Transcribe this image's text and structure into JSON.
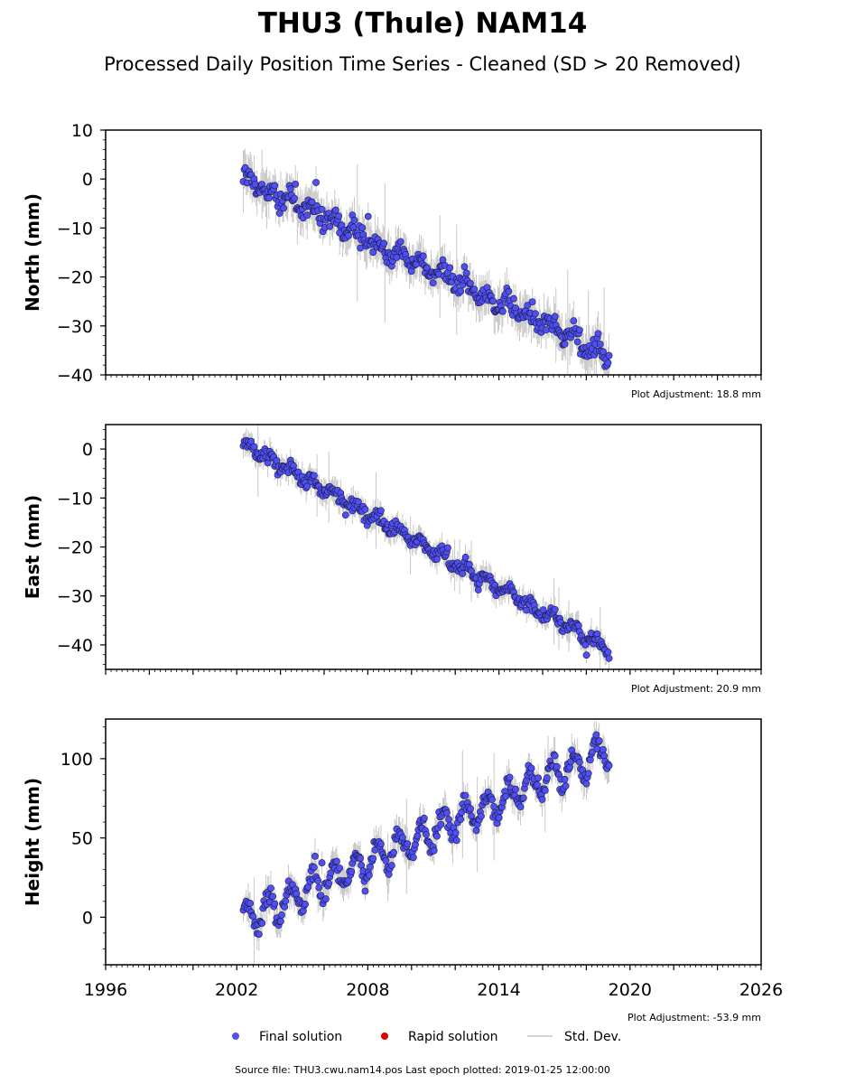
{
  "chart_data": {
    "type": "scatter",
    "title": "THU3 (Thule) NAM14",
    "subtitle": "Processed Daily Position Time Series - Cleaned (SD > 20 Removed)",
    "xlim": [
      1996,
      2026
    ],
    "xticks": [
      1996,
      2002,
      2008,
      2014,
      2020,
      2026
    ],
    "first_epoch": 2002.3,
    "last_epoch": 2019.07,
    "colors": {
      "final": "#4f4ff5",
      "rapid": "#e00000",
      "stddev": "#c8c8c8",
      "marker_edge": "#1a1a40"
    },
    "panels": [
      {
        "ylabel": "North (mm)",
        "ylim": [
          -40,
          10
        ],
        "yticks": [
          10,
          0,
          -10,
          -20,
          -30,
          -40
        ],
        "ytick_labels": [
          "10",
          "0",
          "−10",
          "−20",
          "−30",
          "−40"
        ],
        "adjustment": "Plot Adjustment: 18.8 mm",
        "trend": {
          "start": [
            2002.3,
            0
          ],
          "end": [
            2019.07,
            -36
          ]
        },
        "seasonal_amplitude": 1.2,
        "noise": 1.6
      },
      {
        "ylabel": "East (mm)",
        "ylim": [
          -45,
          5
        ],
        "yticks": [
          0,
          -10,
          -20,
          -30,
          -40
        ],
        "ytick_labels": [
          "0",
          "−10",
          "−20",
          "−30",
          "−40"
        ],
        "adjustment": "Plot Adjustment: 20.9 mm",
        "trend": {
          "start": [
            2002.3,
            1
          ],
          "end": [
            2019.07,
            -41
          ]
        },
        "seasonal_amplitude": 1.0,
        "noise": 1.0
      },
      {
        "ylabel": "Height (mm)",
        "ylim": [
          -30,
          125
        ],
        "yticks": [
          100,
          50,
          0
        ],
        "ytick_labels": [
          "100",
          "50",
          "0"
        ],
        "adjustment": "Plot Adjustment: -53.9 mm",
        "trend": {
          "start": [
            2002.3,
            -2
          ],
          "end": [
            2019.07,
            106
          ]
        },
        "seasonal_amplitude": 9,
        "noise": 4
      }
    ],
    "legend": [
      "Final solution",
      "Rapid solution",
      "Std. Dev."
    ],
    "source": "Source file: THU3.cwu.nam14.pos  Last epoch plotted: 2019-01-25 12:00:00"
  }
}
